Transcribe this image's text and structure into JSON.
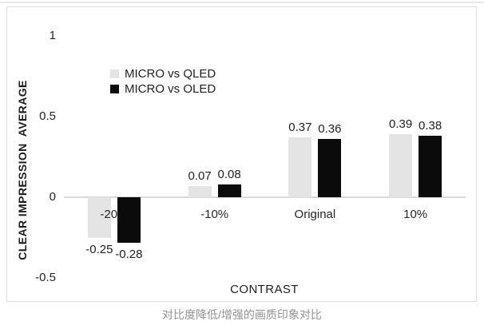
{
  "page": {
    "caption": "对比度降低/增强的画质印象对比"
  },
  "chart_data": {
    "type": "bar",
    "categories": [
      "-20%",
      "-10%",
      "Original",
      "10%"
    ],
    "series": [
      {
        "name": "MICRO vs QLED",
        "color": "#e4e4e4",
        "values": [
          -0.25,
          0.07,
          0.37,
          0.39
        ]
      },
      {
        "name": "MICRO vs OLED",
        "color": "#0b0b0b",
        "values": [
          -0.28,
          0.08,
          0.36,
          0.38
        ]
      }
    ],
    "title": "",
    "xlabel": "CONTRAST",
    "ylabel": "CLEAR IMPRESSION  AVERAGE",
    "ylim": [
      -0.5,
      1
    ],
    "yticks": [
      "1",
      "0.5",
      "0",
      "-0.5"
    ],
    "grid": false,
    "legend_position": "inside-top-left",
    "value_labels_shown": true,
    "axis_line_color": "#d9d9d9",
    "frame_border_color": "#dddddd"
  }
}
